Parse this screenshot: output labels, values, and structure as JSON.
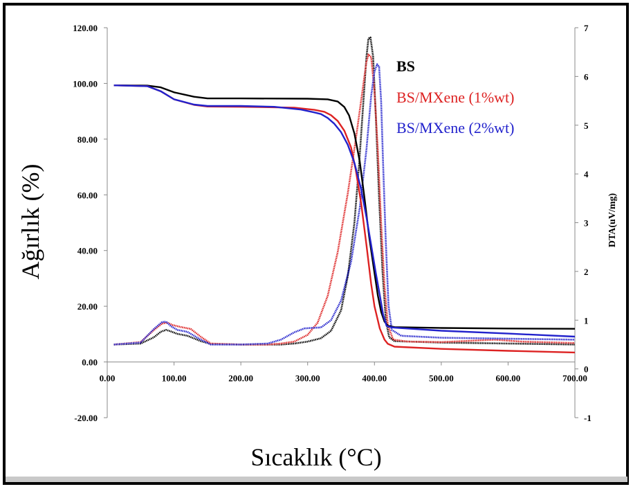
{
  "chart_data": {
    "type": "line",
    "xlabel": "Sıcaklık (°C)",
    "ylabel_left": "Ağırlık (%)",
    "ylabel_right": "DTA(uV/mg)",
    "xlim": [
      0,
      700
    ],
    "ylim_left": [
      -20,
      120
    ],
    "ylim_right": [
      -1,
      7
    ],
    "x_ticks": [
      "0.00",
      "100.00",
      "200.00",
      "300.00",
      "400.00",
      "500.00",
      "600.00",
      "700.00"
    ],
    "y_left_ticks": [
      "120.00",
      "100.00",
      "80.00",
      "60.00",
      "40.00",
      "20.00",
      "0.00",
      "-20.00"
    ],
    "y_right_ticks": [
      "7",
      "6",
      "5",
      "4",
      "3",
      "2",
      "1",
      "0",
      "-1"
    ],
    "legend": [
      {
        "label": "BS",
        "color": "#000000"
      },
      {
        "label": "BS/MXene (1%wt)",
        "color": "#dd2222"
      },
      {
        "label": "BS/MXene (2%wt)",
        "color": "#2222cc"
      }
    ],
    "tga_series": [
      {
        "name": "BS",
        "color": "#000000",
        "points": [
          [
            10,
            99.3
          ],
          [
            60,
            99.2
          ],
          [
            80,
            98.6
          ],
          [
            100,
            96.8
          ],
          [
            130,
            95.2
          ],
          [
            150,
            94.6
          ],
          [
            200,
            94.6
          ],
          [
            300,
            94.5
          ],
          [
            330,
            94.3
          ],
          [
            345,
            93.5
          ],
          [
            355,
            91.5
          ],
          [
            362,
            88.5
          ],
          [
            370,
            82.0
          ],
          [
            378,
            72.0
          ],
          [
            385,
            59.0
          ],
          [
            392,
            45.0
          ],
          [
            400,
            32.0
          ],
          [
            405,
            24.0
          ],
          [
            410,
            18.0
          ],
          [
            415,
            14.5
          ],
          [
            420,
            13.0
          ],
          [
            430,
            12.5
          ],
          [
            500,
            12.2
          ],
          [
            600,
            12.0
          ],
          [
            700,
            11.9
          ]
        ]
      },
      {
        "name": "BS/MXene (1%wt)",
        "color": "#dd2222",
        "points": [
          [
            10,
            99.3
          ],
          [
            60,
            99.0
          ],
          [
            80,
            97.2
          ],
          [
            100,
            94.3
          ],
          [
            130,
            92.3
          ],
          [
            150,
            91.7
          ],
          [
            200,
            91.6
          ],
          [
            280,
            91.3
          ],
          [
            310,
            90.5
          ],
          [
            325,
            89.8
          ],
          [
            335,
            88.6
          ],
          [
            345,
            86.5
          ],
          [
            355,
            83.0
          ],
          [
            365,
            77.0
          ],
          [
            372,
            69.0
          ],
          [
            380,
            57.0
          ],
          [
            388,
            42.0
          ],
          [
            395,
            28.0
          ],
          [
            400,
            20.0
          ],
          [
            408,
            12.0
          ],
          [
            415,
            8.0
          ],
          [
            420,
            6.5
          ],
          [
            430,
            5.5
          ],
          [
            500,
            4.7
          ],
          [
            600,
            4.0
          ],
          [
            700,
            3.4
          ]
        ]
      },
      {
        "name": "BS/MXene (2%wt)",
        "color": "#2222cc",
        "points": [
          [
            10,
            99.3
          ],
          [
            60,
            99.0
          ],
          [
            80,
            97.2
          ],
          [
            100,
            94.3
          ],
          [
            130,
            92.4
          ],
          [
            150,
            91.9
          ],
          [
            200,
            91.9
          ],
          [
            250,
            91.6
          ],
          [
            290,
            90.6
          ],
          [
            310,
            89.6
          ],
          [
            320,
            89.0
          ],
          [
            330,
            87.6
          ],
          [
            340,
            85.5
          ],
          [
            350,
            82.5
          ],
          [
            360,
            78.0
          ],
          [
            370,
            71.5
          ],
          [
            380,
            62.0
          ],
          [
            388,
            52.0
          ],
          [
            395,
            42.0
          ],
          [
            402,
            32.0
          ],
          [
            408,
            24.0
          ],
          [
            413,
            17.0
          ],
          [
            418,
            13.0
          ],
          [
            422,
            12.6
          ],
          [
            430,
            12.3
          ],
          [
            500,
            11.2
          ],
          [
            600,
            10.2
          ],
          [
            700,
            9.1
          ]
        ]
      }
    ],
    "dta_series": [
      {
        "name": "BS",
        "color": "#000000",
        "points": [
          [
            10,
            0.5
          ],
          [
            50,
            0.52
          ],
          [
            70,
            0.65
          ],
          [
            80,
            0.76
          ],
          [
            88,
            0.8
          ],
          [
            95,
            0.77
          ],
          [
            105,
            0.72
          ],
          [
            120,
            0.68
          ],
          [
            140,
            0.57
          ],
          [
            155,
            0.51
          ],
          [
            200,
            0.5
          ],
          [
            260,
            0.5
          ],
          [
            280,
            0.52
          ],
          [
            300,
            0.56
          ],
          [
            320,
            0.63
          ],
          [
            335,
            0.78
          ],
          [
            350,
            1.2
          ],
          [
            360,
            1.9
          ],
          [
            370,
            3.0
          ],
          [
            377,
            4.2
          ],
          [
            383,
            5.4
          ],
          [
            388,
            6.4
          ],
          [
            391,
            6.78
          ],
          [
            394,
            6.8
          ],
          [
            398,
            6.4
          ],
          [
            402,
            5.2
          ],
          [
            407,
            3.5
          ],
          [
            412,
            2.0
          ],
          [
            417,
            1.0
          ],
          [
            422,
            0.65
          ],
          [
            430,
            0.57
          ],
          [
            500,
            0.54
          ],
          [
            600,
            0.52
          ],
          [
            700,
            0.5
          ]
        ]
      },
      {
        "name": "BS/MXene (1%wt)",
        "color": "#dd2222",
        "points": [
          [
            10,
            0.5
          ],
          [
            50,
            0.55
          ],
          [
            70,
            0.8
          ],
          [
            82,
            0.93
          ],
          [
            90,
            0.95
          ],
          [
            98,
            0.9
          ],
          [
            110,
            0.86
          ],
          [
            125,
            0.82
          ],
          [
            140,
            0.66
          ],
          [
            155,
            0.52
          ],
          [
            200,
            0.5
          ],
          [
            240,
            0.5
          ],
          [
            260,
            0.52
          ],
          [
            280,
            0.56
          ],
          [
            300,
            0.7
          ],
          [
            315,
            0.95
          ],
          [
            330,
            1.5
          ],
          [
            345,
            2.4
          ],
          [
            360,
            3.6
          ],
          [
            372,
            4.7
          ],
          [
            382,
            5.7
          ],
          [
            388,
            6.3
          ],
          [
            391,
            6.45
          ],
          [
            395,
            6.4
          ],
          [
            400,
            5.7
          ],
          [
            405,
            4.5
          ],
          [
            410,
            3.0
          ],
          [
            415,
            1.7
          ],
          [
            420,
            0.9
          ],
          [
            428,
            0.6
          ],
          [
            450,
            0.56
          ],
          [
            500,
            0.55
          ],
          [
            550,
            0.58
          ],
          [
            580,
            0.6
          ],
          [
            620,
            0.56
          ],
          [
            700,
            0.53
          ]
        ]
      },
      {
        "name": "BS/MXene (2%wt)",
        "color": "#2222cc",
        "points": [
          [
            10,
            0.5
          ],
          [
            50,
            0.54
          ],
          [
            70,
            0.82
          ],
          [
            82,
            0.96
          ],
          [
            88,
            0.97
          ],
          [
            95,
            0.88
          ],
          [
            105,
            0.8
          ],
          [
            120,
            0.76
          ],
          [
            140,
            0.6
          ],
          [
            155,
            0.5
          ],
          [
            200,
            0.5
          ],
          [
            240,
            0.52
          ],
          [
            260,
            0.6
          ],
          [
            280,
            0.75
          ],
          [
            295,
            0.83
          ],
          [
            305,
            0.84
          ],
          [
            320,
            0.85
          ],
          [
            335,
            1.0
          ],
          [
            350,
            1.4
          ],
          [
            365,
            2.2
          ],
          [
            378,
            3.3
          ],
          [
            388,
            4.5
          ],
          [
            395,
            5.6
          ],
          [
            400,
            6.1
          ],
          [
            404,
            6.25
          ],
          [
            407,
            6.2
          ],
          [
            410,
            5.5
          ],
          [
            413,
            4.2
          ],
          [
            417,
            2.6
          ],
          [
            421,
            1.3
          ],
          [
            426,
            0.8
          ],
          [
            440,
            0.68
          ],
          [
            500,
            0.64
          ],
          [
            600,
            0.62
          ],
          [
            700,
            0.6
          ]
        ]
      }
    ]
  }
}
